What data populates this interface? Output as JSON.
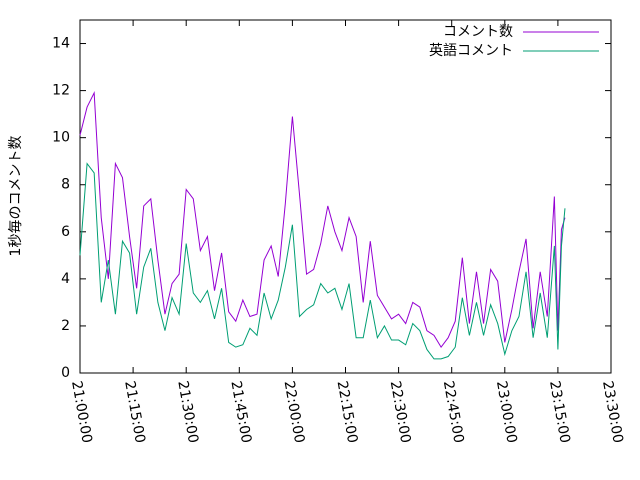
{
  "chart_data": {
    "type": "line",
    "y_label": "1秒毎のコメント数",
    "x": [
      "21:00:00",
      "21:02:00",
      "21:04:00",
      "21:06:00",
      "21:08:00",
      "21:10:00",
      "21:12:00",
      "21:14:00",
      "21:16:00",
      "21:18:00",
      "21:20:00",
      "21:22:00",
      "21:24:00",
      "21:26:00",
      "21:28:00",
      "21:30:00",
      "21:32:00",
      "21:34:00",
      "21:36:00",
      "21:38:00",
      "21:40:00",
      "21:42:00",
      "21:44:00",
      "21:46:00",
      "21:48:00",
      "21:50:00",
      "21:52:00",
      "21:54:00",
      "21:56:00",
      "21:58:00",
      "22:00:00",
      "22:02:00",
      "22:04:00",
      "22:06:00",
      "22:08:00",
      "22:10:00",
      "22:12:00",
      "22:14:00",
      "22:16:00",
      "22:18:00",
      "22:20:00",
      "22:22:00",
      "22:24:00",
      "22:26:00",
      "22:28:00",
      "22:30:00",
      "22:32:00",
      "22:34:00",
      "22:36:00",
      "22:38:00",
      "22:40:00",
      "22:42:00",
      "22:44:00",
      "22:46:00",
      "22:48:00",
      "22:50:00",
      "22:52:00",
      "22:54:00",
      "22:56:00",
      "22:58:00",
      "23:00:00",
      "23:02:00",
      "23:04:00",
      "23:06:00",
      "23:08:00",
      "23:10:00",
      "23:12:00",
      "23:14:00",
      "23:15:00",
      "23:16:00",
      "23:17:00"
    ],
    "series": [
      {
        "name": "コメント数",
        "color": "#9400d3",
        "values": [
          10.1,
          11.3,
          11.9,
          6.6,
          4.0,
          8.9,
          8.3,
          5.8,
          3.6,
          7.1,
          7.4,
          4.8,
          2.5,
          3.8,
          4.2,
          7.8,
          7.4,
          5.2,
          5.8,
          3.5,
          5.1,
          2.6,
          2.2,
          3.1,
          2.4,
          2.5,
          4.8,
          5.4,
          4.1,
          7.2,
          10.9,
          7.6,
          4.2,
          4.4,
          5.5,
          7.1,
          6.0,
          5.2,
          6.6,
          5.8,
          3.0,
          5.6,
          3.3,
          2.8,
          2.3,
          2.5,
          2.1,
          3.0,
          2.8,
          1.8,
          1.6,
          1.1,
          1.5,
          2.2,
          4.9,
          2.1,
          4.3,
          2.1,
          4.4,
          3.9,
          1.3,
          2.7,
          4.3,
          5.7,
          1.9,
          4.3,
          2.4,
          7.5,
          1.8,
          6.1,
          6.6
        ]
      },
      {
        "name": "英語コメント",
        "color": "#009e73",
        "values": [
          5.0,
          8.9,
          8.5,
          3.0,
          4.8,
          2.5,
          5.6,
          5.1,
          2.5,
          4.5,
          5.3,
          3.0,
          1.8,
          3.2,
          2.5,
          5.5,
          3.4,
          3.0,
          3.5,
          2.3,
          3.6,
          1.3,
          1.1,
          1.2,
          1.9,
          1.6,
          3.4,
          2.3,
          3.1,
          4.5,
          6.3,
          2.4,
          2.7,
          2.9,
          3.8,
          3.4,
          3.6,
          2.7,
          3.8,
          1.5,
          1.5,
          3.1,
          1.5,
          2.0,
          1.4,
          1.4,
          1.2,
          2.1,
          1.8,
          1.0,
          0.6,
          0.6,
          0.7,
          1.1,
          3.2,
          1.6,
          3.0,
          1.6,
          2.9,
          2.1,
          0.8,
          1.8,
          2.4,
          4.3,
          1.5,
          3.4,
          1.5,
          5.4,
          1.0,
          5.4,
          7.0
        ]
      }
    ],
    "xlim": [
      "21:00:00",
      "23:30:00"
    ],
    "xticks": [
      "21:00:00",
      "21:15:00",
      "21:30:00",
      "21:45:00",
      "22:00:00",
      "22:15:00",
      "22:30:00",
      "22:45:00",
      "23:00:00",
      "23:15:00",
      "23:30:00"
    ],
    "ylim": [
      0,
      15
    ],
    "yticks": [
      0,
      2,
      4,
      6,
      8,
      10,
      12,
      14
    ],
    "legend": "top right"
  }
}
